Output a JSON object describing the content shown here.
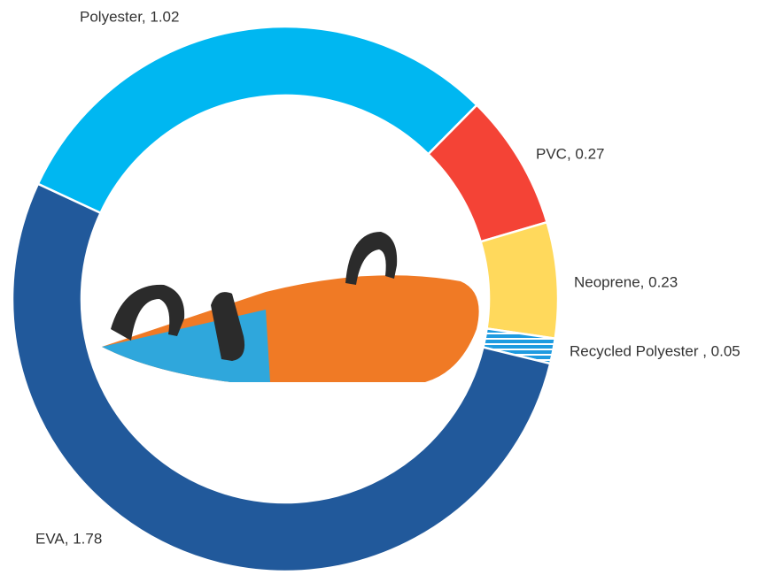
{
  "chart_data": {
    "type": "donut",
    "labels": [
      "Polyester, 1.02",
      "PVC, 0.27",
      "Neoprene, 0.23",
      "Recycled Polyester , 0.05",
      "EVA, 1.78"
    ],
    "values": [
      1.02,
      0.27,
      0.23,
      0.05,
      1.78
    ],
    "colors": [
      "#00b7f1",
      "#f44336",
      "#ffd95c",
      "#1e9be0",
      "#21599b"
    ]
  }
}
